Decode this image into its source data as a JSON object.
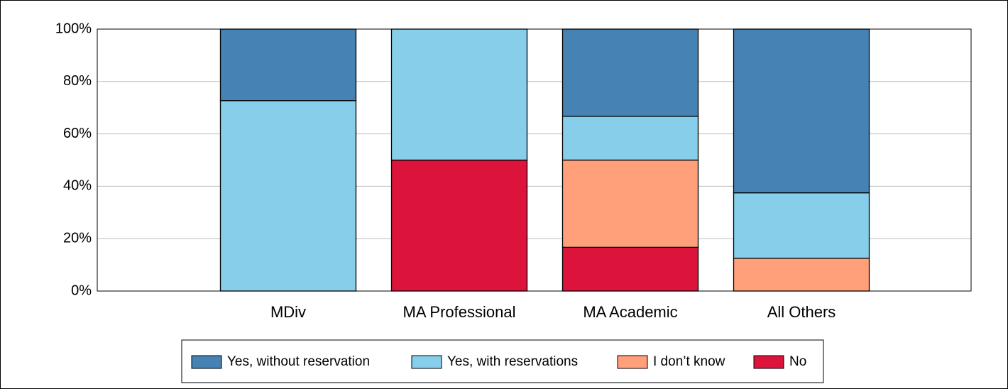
{
  "chart_data": {
    "type": "stacked_bar",
    "categories": [
      "MDiv",
      "MA Professional",
      "MA Academic",
      "All Others"
    ],
    "series": [
      {
        "name": "Yes, without reservation",
        "color": "#4682b4",
        "values": [
          27.3,
          0,
          33.3,
          62.5
        ]
      },
      {
        "name": "Yes, with reservations",
        "color": "#87ceeb",
        "values": [
          72.7,
          50,
          16.7,
          25
        ]
      },
      {
        "name": "I don’t know",
        "color": "#ffa07a",
        "values": [
          0,
          0,
          33.3,
          12.5
        ]
      },
      {
        "name": "No",
        "color": "#dc143c",
        "values": [
          0,
          50,
          16.7,
          0
        ]
      }
    ],
    "ylim": [
      0,
      100
    ],
    "yticks": [
      {
        "value": 0,
        "label": "0%"
      },
      {
        "value": 20,
        "label": "20%"
      },
      {
        "value": 40,
        "label": "40%"
      },
      {
        "value": 60,
        "label": "60%"
      },
      {
        "value": 80,
        "label": "80%"
      },
      {
        "value": 100,
        "label": "100%"
      }
    ],
    "grid": true,
    "legend": "bottom"
  }
}
